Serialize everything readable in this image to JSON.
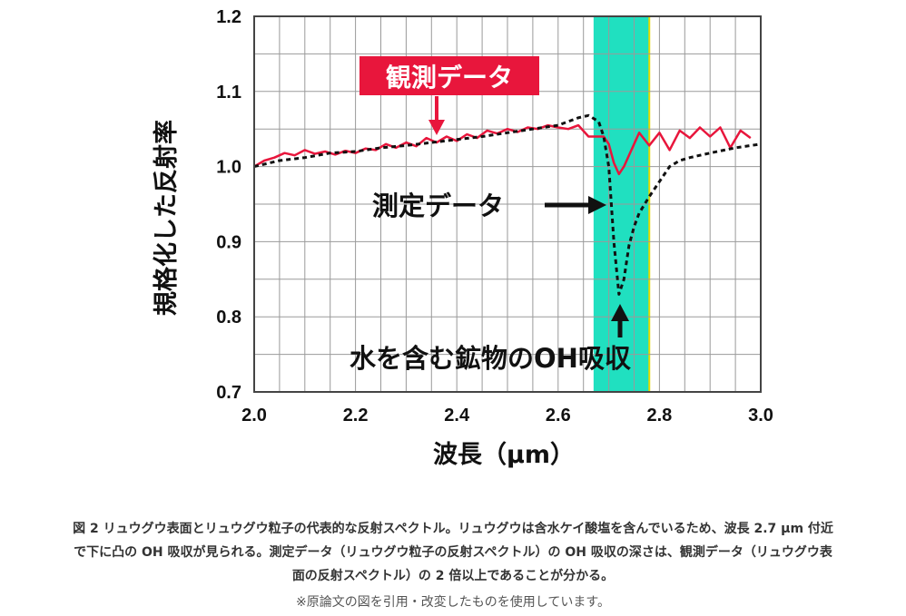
{
  "chart_data": {
    "type": "line",
    "xlabel": "波長（μm）",
    "ylabel": "規格化した反射率",
    "xlim": [
      2.0,
      3.0
    ],
    "ylim": [
      0.7,
      1.2
    ],
    "x_ticks": [
      "2.0",
      "2.2",
      "2.4",
      "2.6",
      "2.8",
      "3.0"
    ],
    "y_ticks": [
      "0.7",
      "0.8",
      "0.9",
      "1.0",
      "1.1",
      "1.2"
    ],
    "grid": true,
    "highlight_band": {
      "x_range": [
        2.67,
        2.78
      ],
      "color": "#20e0c0",
      "edge_color": "#e3d800"
    },
    "series": [
      {
        "name": "観測データ",
        "color": "#e8163c",
        "style": "solid",
        "x": [
          2.0,
          2.02,
          2.04,
          2.06,
          2.08,
          2.1,
          2.12,
          2.14,
          2.16,
          2.18,
          2.2,
          2.22,
          2.24,
          2.26,
          2.28,
          2.3,
          2.32,
          2.34,
          2.36,
          2.38,
          2.4,
          2.42,
          2.44,
          2.46,
          2.48,
          2.5,
          2.52,
          2.54,
          2.56,
          2.58,
          2.6,
          2.62,
          2.64,
          2.66,
          2.68,
          2.69,
          2.7,
          2.71,
          2.72,
          2.73,
          2.74,
          2.76,
          2.78,
          2.8,
          2.82,
          2.84,
          2.86,
          2.88,
          2.9,
          2.92,
          2.94,
          2.96,
          2.98
        ],
        "y": [
          1.0,
          1.008,
          1.012,
          1.018,
          1.015,
          1.022,
          1.017,
          1.02,
          1.016,
          1.021,
          1.018,
          1.024,
          1.022,
          1.03,
          1.025,
          1.032,
          1.027,
          1.038,
          1.032,
          1.04,
          1.034,
          1.043,
          1.038,
          1.048,
          1.044,
          1.05,
          1.046,
          1.052,
          1.05,
          1.055,
          1.052,
          1.05,
          1.055,
          1.04,
          1.04,
          1.04,
          1.03,
          1.005,
          0.99,
          1.0,
          1.015,
          1.045,
          1.028,
          1.045,
          1.022,
          1.048,
          1.038,
          1.052,
          1.04,
          1.052,
          1.025,
          1.048,
          1.038
        ]
      },
      {
        "name": "測定データ",
        "color": "#111111",
        "style": "dashed",
        "x": [
          2.0,
          2.05,
          2.1,
          2.15,
          2.2,
          2.25,
          2.3,
          2.35,
          2.4,
          2.45,
          2.5,
          2.55,
          2.6,
          2.62,
          2.64,
          2.66,
          2.68,
          2.69,
          2.7,
          2.71,
          2.72,
          2.73,
          2.74,
          2.75,
          2.76,
          2.78,
          2.8,
          2.82,
          2.84,
          2.86,
          2.88,
          2.9,
          2.95,
          3.0
        ],
        "y": [
          1.0,
          1.008,
          1.012,
          1.018,
          1.02,
          1.025,
          1.028,
          1.032,
          1.036,
          1.04,
          1.045,
          1.05,
          1.055,
          1.06,
          1.065,
          1.068,
          1.06,
          1.04,
          1.0,
          0.9,
          0.83,
          0.85,
          0.895,
          0.92,
          0.938,
          0.96,
          0.98,
          1.0,
          1.008,
          1.012,
          1.015,
          1.018,
          1.025,
          1.03
        ]
      }
    ],
    "annotations": [
      {
        "text": "観測データ",
        "style": "red-box"
      },
      {
        "text": "測定データ",
        "style": "black"
      },
      {
        "text": "水を含む鉱物のOH吸収",
        "style": "black"
      }
    ]
  },
  "caption": {
    "lines": [
      "図 2  リュウグウ表面とリュウグウ粒子の代表的な反射スペクトル。リュウグウは含水ケイ酸塩を含んでいるため、波長 2.7 μm 付近",
      "で下に凸の OH 吸収が見られる。測定データ（リュウグウ粒子の反射スペクトル）の OH 吸収の深さは、観測データ（リュウグウ表",
      "面の反射スペクトル）の 2 倍以上であることが分かる。"
    ],
    "note": "※原論文の図を引用・改変したものを使用しています。"
  }
}
